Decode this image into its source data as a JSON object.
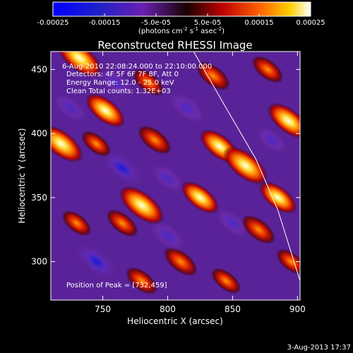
{
  "chart_data": {
    "type": "heatmap",
    "title": "Reconstructed RHESSI Image",
    "xlabel": "Heliocentric X (arcsec)",
    "ylabel": "Heliocentric Y (arcsec)",
    "xlim": [
      710,
      902
    ],
    "ylim": [
      270,
      464
    ],
    "xticks": [
      750,
      800,
      850,
      900
    ],
    "yticks": [
      300,
      350,
      400,
      450
    ],
    "colorbar": {
      "ticks": [
        "-0.00025",
        "-0.00015",
        "-5.0e-05",
        "5.0e-05",
        "0.00015",
        "0.00025"
      ],
      "tick_values": [
        -0.00025,
        -0.00015,
        -5e-05,
        5e-05,
        0.00015,
        0.00025
      ],
      "range": [
        -0.00025,
        0.00025
      ],
      "unit_parts": [
        "(photons cm",
        "-2",
        " s",
        "-1",
        " asec",
        "-2",
        ")"
      ]
    },
    "annotations": [
      "6-Aug-2010 22:08:24.000  to  22:10:00.000",
      "Detectors: 4F 5F 6F 7F 8F, Att 0",
      "Energy Range: 12.0 - 25.0 keV",
      "Clean    Total counts: 1.32E+03"
    ],
    "peak_label": "Position of Peak = [732,459]",
    "limb_curve": [
      [
        820,
        464
      ],
      [
        845,
        420
      ],
      [
        868,
        380
      ],
      [
        885,
        340
      ],
      [
        902,
        285
      ]
    ],
    "blobs": [
      {
        "x": 732,
        "y": 459,
        "v": 0.00025
      },
      {
        "x": 752,
        "y": 418,
        "v": 0.0002
      },
      {
        "x": 718,
        "y": 392,
        "v": 0.00024
      },
      {
        "x": 745,
        "y": 392,
        "v": 0.0001
      },
      {
        "x": 790,
        "y": 395,
        "v": 0.00014
      },
      {
        "x": 785,
        "y": 440,
        "v": 0.00012
      },
      {
        "x": 835,
        "y": 445,
        "v": 0.00014
      },
      {
        "x": 877,
        "y": 450,
        "v": 0.00012
      },
      {
        "x": 893,
        "y": 410,
        "v": 0.00022
      },
      {
        "x": 860,
        "y": 375,
        "v": 0.00025
      },
      {
        "x": 840,
        "y": 390,
        "v": 0.0002
      },
      {
        "x": 885,
        "y": 350,
        "v": 0.00018
      },
      {
        "x": 780,
        "y": 344,
        "v": 0.00025
      },
      {
        "x": 765,
        "y": 330,
        "v": 0.00012
      },
      {
        "x": 825,
        "y": 350,
        "v": 0.00018
      },
      {
        "x": 870,
        "y": 325,
        "v": 0.00014
      },
      {
        "x": 810,
        "y": 300,
        "v": 0.00014
      },
      {
        "x": 780,
        "y": 285,
        "v": 0.00012
      },
      {
        "x": 730,
        "y": 330,
        "v": 0.0001
      },
      {
        "x": 895,
        "y": 300,
        "v": 0.0001
      },
      {
        "x": 845,
        "y": 285,
        "v": 0.0001
      },
      {
        "x": 800,
        "y": 320,
        "v": -0.00015
      },
      {
        "x": 765,
        "y": 373,
        "v": -0.00018
      },
      {
        "x": 745,
        "y": 300,
        "v": -0.0002
      },
      {
        "x": 800,
        "y": 365,
        "v": -0.00012
      },
      {
        "x": 815,
        "y": 420,
        "v": -0.00015
      },
      {
        "x": 760,
        "y": 440,
        "v": -0.0001
      },
      {
        "x": 850,
        "y": 330,
        "v": -0.00012
      },
      {
        "x": 880,
        "y": 395,
        "v": -0.0001
      },
      {
        "x": 725,
        "y": 420,
        "v": -0.00012
      }
    ]
  },
  "footer": {
    "timestamp": "3-Aug-2013 17:37"
  }
}
